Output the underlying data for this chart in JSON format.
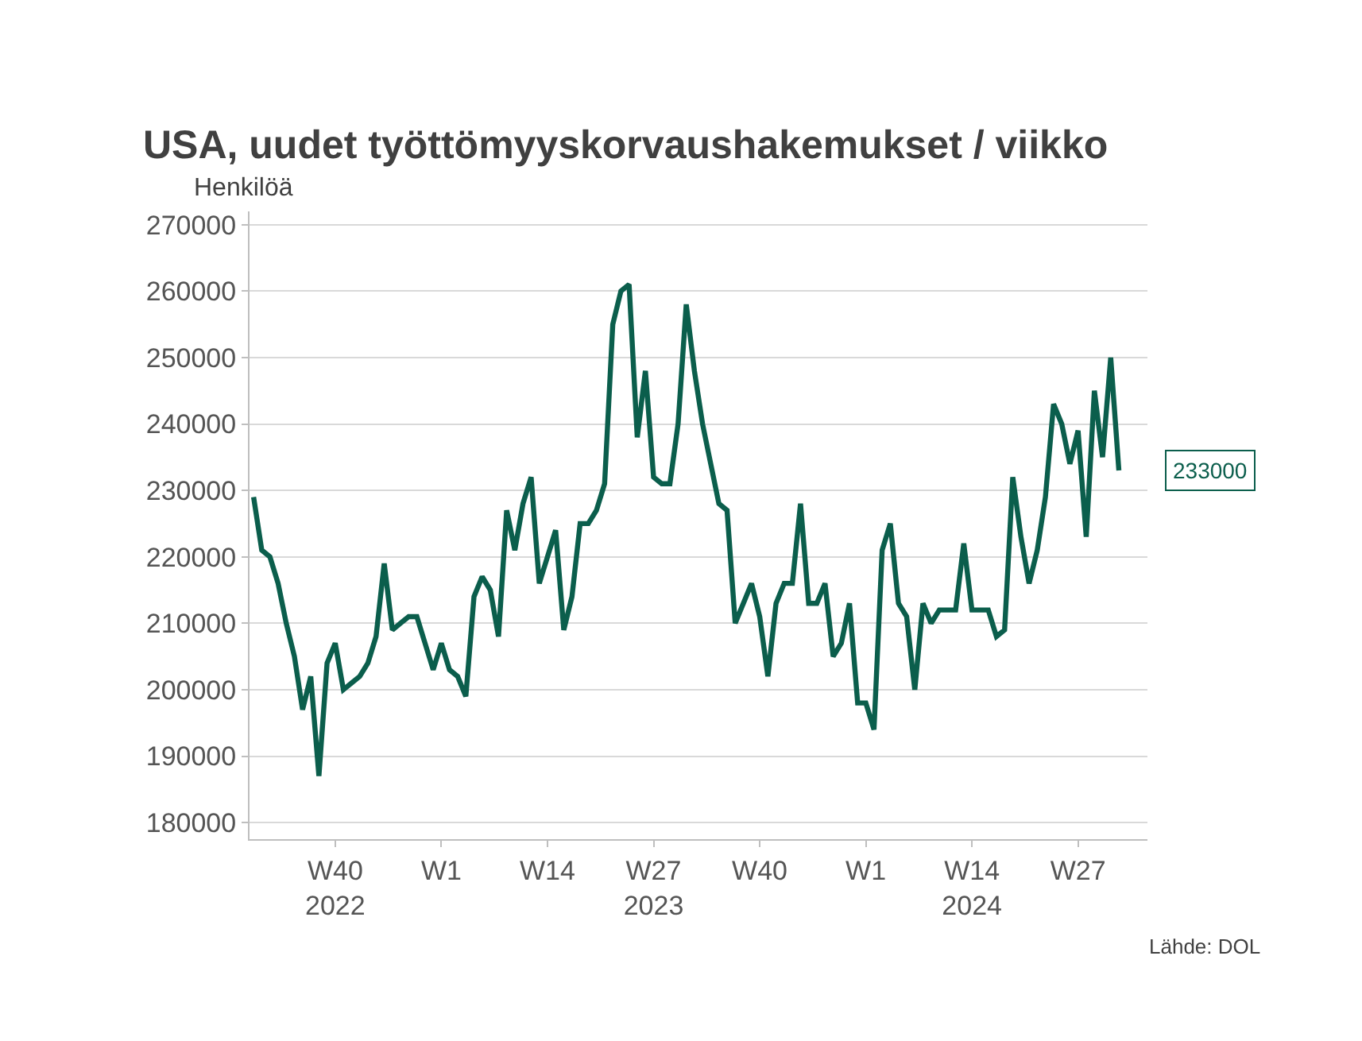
{
  "chart_data": {
    "type": "line",
    "title": "USA, uudet työttömyyskorvaushakemukset / viikko",
    "ylabel": "Henkilöä",
    "categories": [
      null,
      null,
      null,
      null,
      null,
      null,
      null,
      null,
      null,
      null,
      "W40\n2022",
      null,
      null,
      null,
      null,
      null,
      null,
      null,
      null,
      null,
      null,
      null,
      null,
      "W1",
      null,
      null,
      null,
      null,
      null,
      null,
      null,
      null,
      null,
      null,
      null,
      null,
      "W14",
      null,
      null,
      null,
      null,
      null,
      null,
      null,
      null,
      null,
      null,
      null,
      null,
      "W27\n2023",
      null,
      null,
      null,
      null,
      null,
      null,
      null,
      null,
      null,
      null,
      null,
      null,
      "W40",
      null,
      null,
      null,
      null,
      null,
      null,
      null,
      null,
      null,
      null,
      null,
      null,
      "W1",
      null,
      null,
      null,
      null,
      null,
      null,
      null,
      null,
      null,
      null,
      null,
      null,
      "W14\n2024",
      null,
      null,
      null,
      null,
      null,
      null,
      null,
      null,
      null,
      null,
      null,
      null,
      "W27",
      null,
      null,
      null,
      null,
      null
    ],
    "series": [
      {
        "color": "#0b5e4c",
        "values": [
          229000,
          221000,
          220000,
          216000,
          210000,
          205000,
          197000,
          202000,
          187000,
          204000,
          207000,
          200000,
          201000,
          202000,
          204000,
          208000,
          219000,
          209000,
          210000,
          211000,
          211000,
          207000,
          203000,
          207000,
          203000,
          202000,
          199000,
          214000,
          217000,
          215000,
          208000,
          227000,
          221000,
          228000,
          232000,
          216000,
          220000,
          224000,
          209000,
          214000,
          225000,
          225000,
          227000,
          231000,
          255000,
          260000,
          261000,
          238000,
          248000,
          232000,
          231000,
          231000,
          240000,
          258000,
          248000,
          240000,
          234000,
          228000,
          227000,
          210000,
          213000,
          216000,
          211000,
          202000,
          213000,
          216000,
          216000,
          228000,
          213000,
          213000,
          216000,
          205000,
          207000,
          213000,
          198000,
          198000,
          194000,
          221000,
          225000,
          213000,
          211000,
          200000,
          213000,
          210000,
          212000,
          212000,
          212000,
          222000,
          212000,
          212000,
          212000,
          208000,
          209000,
          232000,
          223000,
          216000,
          221000,
          229000,
          243000,
          240000,
          234000,
          239000,
          223000,
          245000,
          235000,
          250000,
          233000
        ]
      }
    ],
    "ylim": [
      177500,
      272000
    ],
    "yticks": [
      180000,
      190000,
      200000,
      210000,
      220000,
      230000,
      240000,
      250000,
      260000,
      270000
    ],
    "grid": "y",
    "marker": "none",
    "line_style": "solid",
    "annotations": [
      "233000",
      "Lähde: DOL"
    ]
  }
}
